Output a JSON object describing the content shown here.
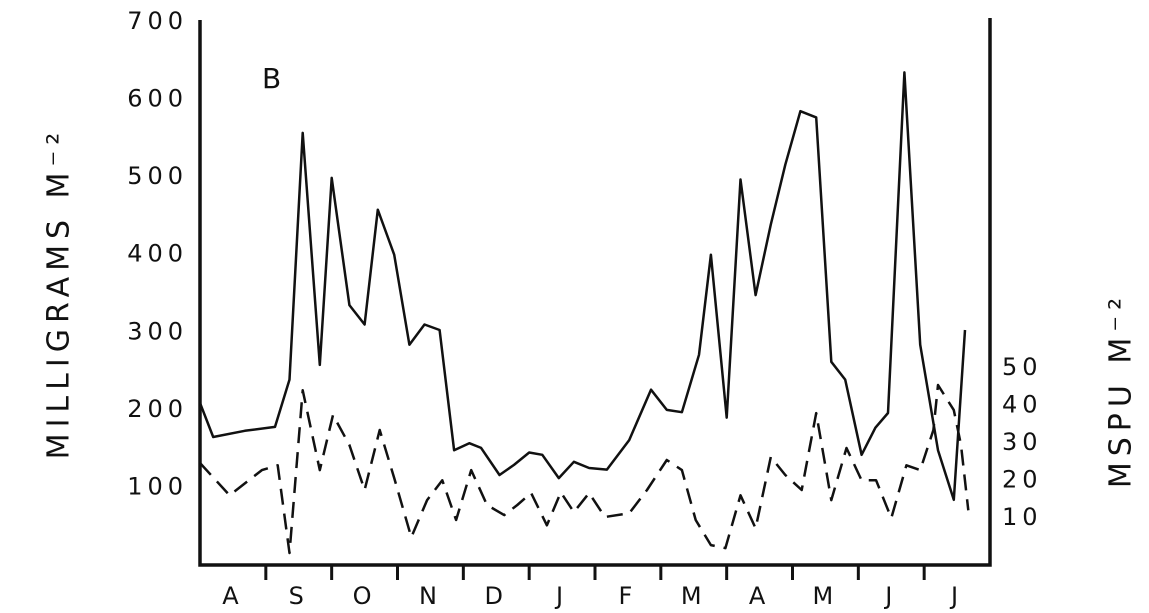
{
  "chart_data": {
    "type": "line",
    "annotation": "B",
    "ylabel": "MILLIGRAMS M⁻²",
    "y2label": "MSPU M⁻²",
    "xlim": [
      0,
      12
    ],
    "xticks": [
      {
        "value": 0.5,
        "label": "A"
      },
      {
        "value": 1.5,
        "label": "S"
      },
      {
        "value": 2.5,
        "label": "O"
      },
      {
        "value": 3.5,
        "label": "N"
      },
      {
        "value": 4.5,
        "label": "D"
      },
      {
        "value": 5.5,
        "label": "J"
      },
      {
        "value": 6.5,
        "label": "F"
      },
      {
        "value": 7.5,
        "label": "M"
      },
      {
        "value": 8.5,
        "label": "A"
      },
      {
        "value": 9.5,
        "label": "M"
      },
      {
        "value": 10.5,
        "label": "J"
      },
      {
        "value": 11.5,
        "label": "J"
      }
    ],
    "ylim": [
      0,
      700
    ],
    "yticks": [
      100,
      200,
      300,
      400,
      500,
      600,
      700
    ],
    "y2lim": [
      -2.5,
      142.3
    ],
    "y2ticks": [
      10,
      20,
      30,
      40,
      50
    ],
    "series": [
      {
        "color": "#111111",
        "dash": "solid",
        "x": [
          0,
          0.2,
          0.68,
          1.14,
          1.36,
          1.56,
          1.82,
          2.0,
          2.27,
          2.5,
          2.7,
          2.95,
          3.18,
          3.41,
          3.64,
          3.86,
          4.09,
          4.27,
          4.55,
          4.77,
          5.0,
          5.2,
          5.45,
          5.68,
          5.91,
          6.18,
          6.52,
          6.85,
          7.09,
          7.32,
          7.58,
          7.76,
          8.0,
          8.21,
          8.44,
          8.67,
          8.89,
          9.12,
          9.36,
          9.59,
          9.8,
          10.05,
          10.26,
          10.45,
          10.7,
          10.94,
          11.21,
          11.45,
          11.62
        ],
        "values": [
          209,
          165,
          173,
          178,
          239,
          557,
          258,
          499,
          335,
          310,
          458,
          400,
          284,
          310,
          303,
          148,
          157,
          151,
          116,
          129,
          145,
          142,
          112,
          133,
          125,
          123,
          161,
          226,
          200,
          197,
          271,
          400,
          190,
          497,
          348,
          439,
          516,
          585,
          577,
          262,
          239,
          142,
          177,
          196,
          635,
          284,
          148,
          84,
          303
        ]
      },
      {
        "color": "#111111",
        "dash": "dashed",
        "axis": "y2",
        "x": [
          0,
          0.45,
          0.94,
          1.18,
          1.36,
          1.56,
          1.82,
          2.02,
          2.27,
          2.5,
          2.73,
          2.95,
          3.21,
          3.45,
          3.68,
          3.89,
          4.12,
          4.36,
          4.62,
          4.82,
          5.03,
          5.27,
          5.48,
          5.68,
          5.91,
          6.15,
          6.52,
          6.79,
          7.09,
          7.32,
          7.53,
          7.76,
          7.98,
          8.21,
          8.44,
          8.67,
          8.89,
          9.14,
          9.36,
          9.59,
          9.82,
          10.05,
          10.27,
          10.5,
          10.73,
          10.94,
          11.14,
          11.21,
          11.45,
          11.56,
          11.67
        ],
        "values": [
          24.7,
          16.1,
          22.8,
          24.1,
          0.7,
          44.1,
          22.8,
          37.5,
          29.5,
          17.5,
          33.5,
          20.7,
          4.9,
          14.8,
          20.1,
          9.5,
          22.8,
          13.5,
          10.8,
          13.5,
          16.7,
          8.1,
          16.9,
          11.6,
          16.7,
          10.3,
          11.3,
          17.5,
          25.5,
          22.8,
          9.5,
          2.8,
          2.0,
          16.1,
          7.3,
          26.3,
          21.5,
          17.5,
          38.0,
          14.8,
          28.7,
          20.1,
          20.1,
          10.0,
          24.1,
          22.8,
          33.5,
          45.5,
          38.8,
          29.5,
          12.1
        ]
      }
    ]
  }
}
